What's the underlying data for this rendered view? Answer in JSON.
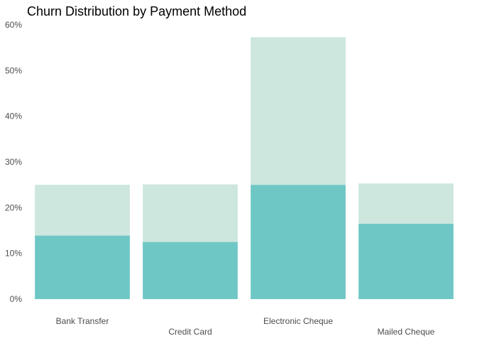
{
  "chart_data": {
    "type": "bar",
    "title": "Churn Distribution by Payment Method",
    "xlabel": "",
    "ylabel": "",
    "ylim": [
      0,
      0.6
    ],
    "yticks": [
      {
        "value": 0,
        "label": "0%"
      },
      {
        "value": 0.1,
        "label": "10%"
      },
      {
        "value": 0.2,
        "label": "20%"
      },
      {
        "value": 0.3,
        "label": "30%"
      },
      {
        "value": 0.4,
        "label": "40%"
      },
      {
        "value": 0.5,
        "label": "50%"
      },
      {
        "value": 0.6,
        "label": "60%"
      }
    ],
    "categories": [
      "Bank Transfer",
      "Credit Card",
      "Electronic Cheque",
      "Mailed Cheque"
    ],
    "series": [
      {
        "values": [
          0.25,
          0.251,
          0.573,
          0.253
        ],
        "color": "#cde6de"
      },
      {
        "values": [
          0.139,
          0.125,
          0.25,
          0.165
        ],
        "color": "#6ec7c5"
      }
    ],
    "overlap_color": "#85d2d3",
    "grid": false,
    "legend": "none"
  }
}
